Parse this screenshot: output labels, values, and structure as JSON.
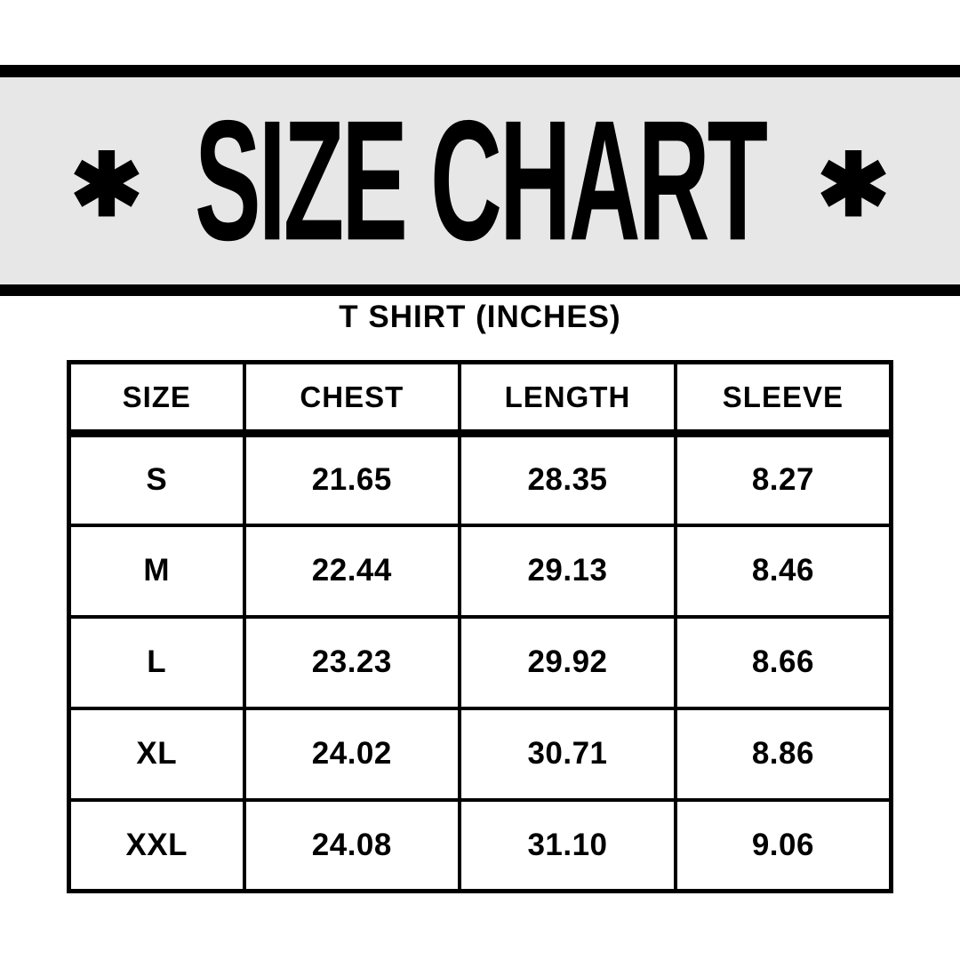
{
  "header": {
    "title": "SIZE CHART",
    "asterisk": "✱"
  },
  "subtitle": "T SHIRT (INCHES)",
  "chart_data": {
    "type": "table",
    "title": "T SHIRT (INCHES)",
    "columns": [
      "SIZE",
      "CHEST",
      "LENGTH",
      "SLEEVE"
    ],
    "rows": [
      [
        "S",
        "21.65",
        "28.35",
        "8.27"
      ],
      [
        "M",
        "22.44",
        "29.13",
        "8.46"
      ],
      [
        "L",
        "23.23",
        "29.92",
        "8.66"
      ],
      [
        "XL",
        "24.02",
        "30.71",
        "8.86"
      ],
      [
        "XXL",
        "24.08",
        "31.10",
        "9.06"
      ]
    ]
  },
  "colors": {
    "band_bg": "#e8e7e7",
    "bar": "#000000",
    "text": "#000000",
    "table_bg": "#ffffff"
  }
}
